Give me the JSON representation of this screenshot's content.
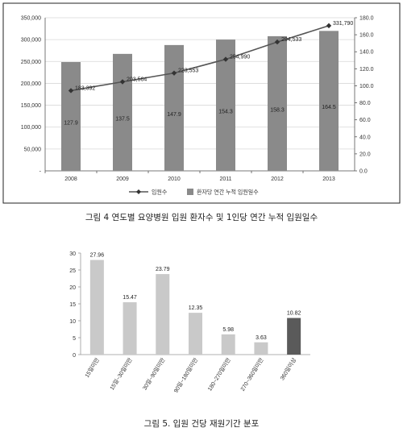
{
  "chart_data": [
    {
      "type": "bar+line",
      "caption": "그림 4 연도별 요양병원 입원 환자수 및 1인당 연간 누적 입원일수",
      "categories": [
        "2008",
        "2009",
        "2010",
        "2011",
        "2012",
        "2013"
      ],
      "series": [
        {
          "name": "입원수",
          "type": "line",
          "axis": "left",
          "values": [
            183392,
            203564,
            223553,
            254990,
            294533,
            331790
          ],
          "labels": [
            "183,392",
            "203,564",
            "223,553",
            "254,990",
            "294,533",
            "331,790"
          ]
        },
        {
          "name": "환자당 연간 누적 입원일수",
          "type": "bar",
          "axis": "right",
          "values": [
            127.9,
            137.5,
            147.9,
            154.3,
            158.3,
            164.5
          ],
          "labels": [
            "127.9",
            "137.5",
            "147.9",
            "154.3",
            "158.3",
            "164.5"
          ]
        }
      ],
      "left_axis": {
        "min": 0,
        "max": 350000,
        "step": 50000,
        "ticks": [
          "-",
          "50,000",
          "100,000",
          "150,000",
          "200,000",
          "250,000",
          "300,000",
          "350,000"
        ]
      },
      "right_axis": {
        "min": 0,
        "max": 180,
        "step": 20,
        "ticks": [
          "0.0",
          "20.0",
          "40.0",
          "60.0",
          "80.0",
          "100.0",
          "120.0",
          "140.0",
          "160.0",
          "180.0"
        ]
      },
      "legend_position": "bottom",
      "grid": true,
      "colors": {
        "bar": "#8a8a8a",
        "line": "#555555",
        "grid": "#d8d8d8"
      }
    },
    {
      "type": "bar",
      "caption": "그림 5. 입원 건당 재원기간 분포",
      "categories": [
        "15일미만",
        "15일~30일미만",
        "30일~90일미만",
        "90일~180일미만",
        "180~270일미만",
        "270~360일미만",
        "360일이상"
      ],
      "values": [
        27.96,
        15.47,
        23.79,
        12.35,
        5.98,
        3.63,
        10.82
      ],
      "labels": [
        "27.96",
        "15.47",
        "23.79",
        "12.35",
        "5.98",
        "3.63",
        "10.82"
      ],
      "ylim": [
        0,
        30
      ],
      "ticks": [
        "0",
        "5",
        "10",
        "15",
        "20",
        "25",
        "30"
      ],
      "grid": false,
      "colors": {
        "bar": "#c9c9c9",
        "highlight": "#5a5a5a",
        "axis": "#999999"
      }
    }
  ]
}
